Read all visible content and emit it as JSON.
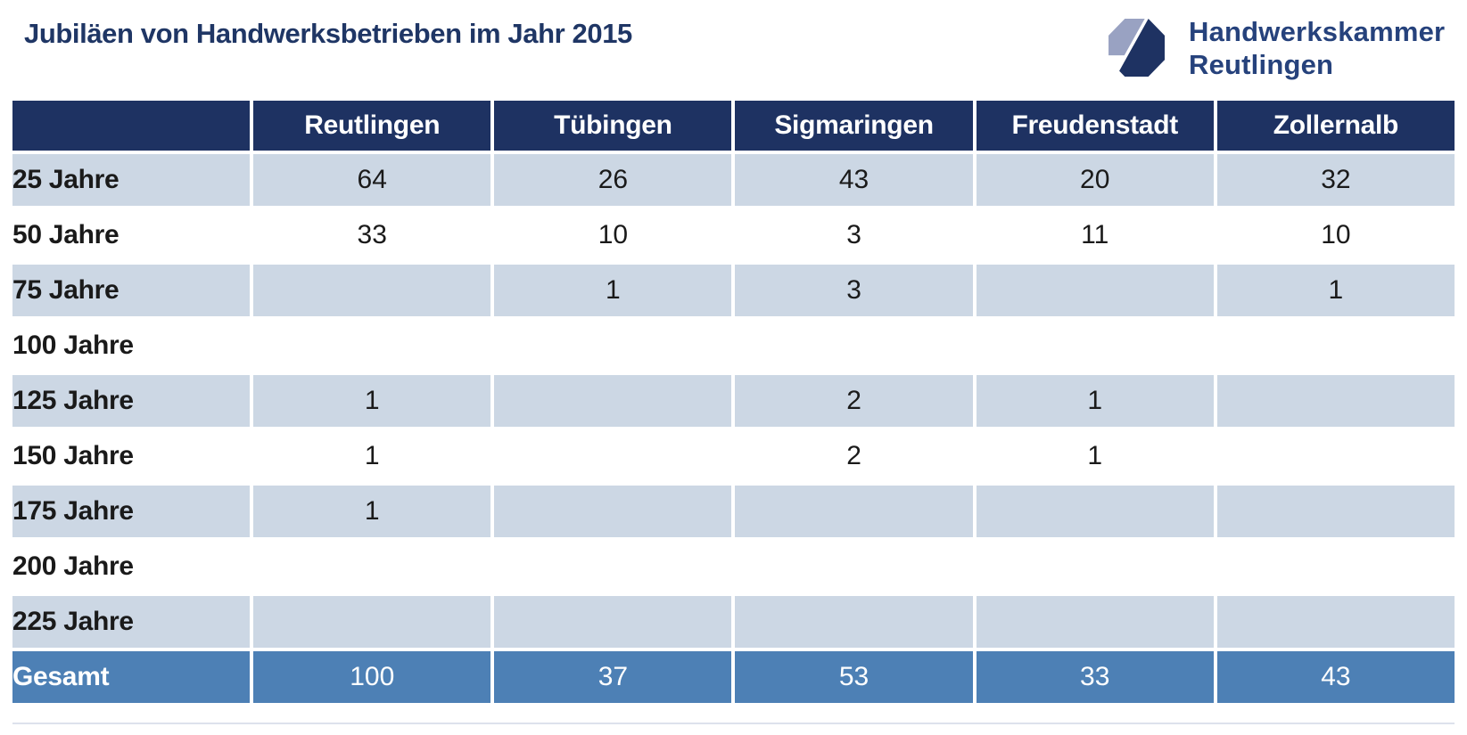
{
  "title": "Jubiläen von Handwerksbetrieben im Jahr 2015",
  "logo": {
    "line1": "Handwerkskammer",
    "line2": "Reutlingen"
  },
  "colors": {
    "navy": "#1e3262",
    "stripe": "#ccd7e4",
    "total_blue": "#4d80b5",
    "title_text": "#1f3665",
    "logo_light": "#99a2c2",
    "logo_dark": "#1e3262",
    "logo_text": "#26427c",
    "value_text": "#1a1a1a"
  },
  "chart_data": {
    "type": "table",
    "title": "Jubiläen von Handwerksbetrieben im Jahr 2015",
    "columns": [
      "",
      "Reutlingen",
      "Tübingen",
      "Sigmaringen",
      "Freudenstadt",
      "Zollernalb"
    ],
    "rows": [
      {
        "label": "25 Jahre",
        "values": [
          "64",
          "26",
          "43",
          "20",
          "32"
        ]
      },
      {
        "label": "50 Jahre",
        "values": [
          "33",
          "10",
          "3",
          "11",
          "10"
        ]
      },
      {
        "label": "75 Jahre",
        "values": [
          "",
          "1",
          "3",
          "",
          "1"
        ]
      },
      {
        "label": "100 Jahre",
        "values": [
          "",
          "",
          "",
          "",
          ""
        ]
      },
      {
        "label": "125 Jahre",
        "values": [
          "1",
          "",
          "2",
          "1",
          ""
        ]
      },
      {
        "label": "150 Jahre",
        "values": [
          "1",
          "",
          "2",
          "1",
          ""
        ]
      },
      {
        "label": "175 Jahre",
        "values": [
          "1",
          "",
          "",
          "",
          ""
        ]
      },
      {
        "label": "200 Jahre",
        "values": [
          "",
          "",
          "",
          "",
          ""
        ]
      },
      {
        "label": "225 Jahre",
        "values": [
          "",
          "",
          "",
          "",
          ""
        ]
      }
    ],
    "total_row": {
      "label": "Gesamt",
      "values": [
        "100",
        "37",
        "53",
        "33",
        "43"
      ]
    },
    "layout_hints": {
      "striped_rows": "alternating starting with first data row",
      "header_style": "navy, white bold centered",
      "total_style": "medium blue, white text"
    }
  }
}
